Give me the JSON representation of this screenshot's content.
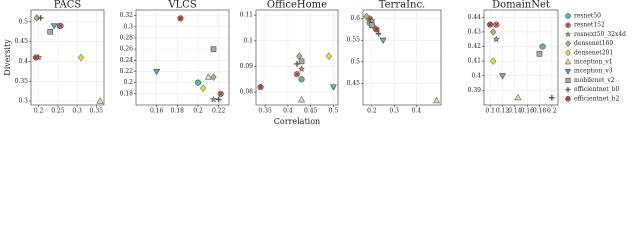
{
  "legend": {
    "names": [
      "resnet50",
      "resnet152",
      "resnext50_32x4d",
      "densenet169",
      "densenet201",
      "inception_v1",
      "inception_v3",
      "mobilenet_v2",
      "efficientnet_b0",
      "efficientnet_b2"
    ],
    "colors": [
      "#5fb3a3",
      "#e8806e",
      "#9ea3c4",
      "#8cc27a",
      "#e6d84a",
      "#e8df9a",
      "#5aa9b5",
      "#a8a8a8",
      "#555555",
      "#e05a4f"
    ],
    "markers": [
      "circle",
      "xcircle",
      "star",
      "diamond",
      "diamond",
      "triangle-up",
      "triangle-down",
      "square",
      "plus",
      "xcircle"
    ]
  },
  "chart_data": [
    {
      "type": "scatter",
      "title": "PACS",
      "ylabel": "Diversity",
      "xlim": [
        0.18,
        0.37
      ],
      "xticks": [
        0.2,
        0.25,
        0.3,
        0.35
      ],
      "ylim": [
        0.29,
        0.53
      ],
      "yticks": [
        0.3,
        0.35,
        0.4,
        0.45,
        0.5
      ],
      "grid": true,
      "x": [
        0.255,
        0.257,
        0.2,
        0.195,
        0.31,
        0.36,
        0.24,
        0.23,
        0.205,
        0.193
      ],
      "values": [
        0.49,
        0.49,
        0.41,
        0.51,
        0.41,
        0.3,
        0.49,
        0.475,
        0.51,
        0.41
      ]
    },
    {
      "type": "scatter",
      "title": "VLCS",
      "xlim": [
        0.14,
        0.23
      ],
      "xticks": [
        0.16,
        0.18,
        0.2,
        0.22
      ],
      "ylim": [
        0.16,
        0.33
      ],
      "yticks": [
        0.18,
        0.2,
        0.22,
        0.24,
        0.26,
        0.28,
        0.3,
        0.32
      ],
      "grid": true,
      "x": [
        0.2,
        0.222,
        0.215,
        0.215,
        0.205,
        0.21,
        0.16,
        0.215,
        0.22,
        0.183
      ],
      "values": [
        0.2,
        0.18,
        0.17,
        0.21,
        0.19,
        0.21,
        0.22,
        0.26,
        0.17,
        0.315
      ]
    },
    {
      "type": "scatter",
      "title": "OfficeHome",
      "xlabel": "Correlation",
      "xlim": [
        0.33,
        0.51
      ],
      "xticks": [
        0.35,
        0.4,
        0.45,
        0.5
      ],
      "ylim": [
        0.075,
        0.112
      ],
      "yticks": [
        0.08,
        0.09,
        0.1,
        0.11
      ],
      "grid": true,
      "x": [
        0.43,
        0.42,
        0.43,
        0.425,
        0.49,
        0.43,
        0.5,
        0.43,
        0.42,
        0.34
      ],
      "values": [
        0.085,
        0.087,
        0.089,
        0.094,
        0.094,
        0.077,
        0.082,
        0.092,
        0.091,
        0.082
      ]
    },
    {
      "type": "scatter",
      "title": "TerraInc.",
      "xlim": [
        0.16,
        0.51
      ],
      "xticks": [
        0.2,
        0.3,
        0.4
      ],
      "ylim": [
        0.4,
        0.62
      ],
      "yticks": [
        0.45,
        0.5,
        0.55,
        0.6
      ],
      "grid": true,
      "x": [
        0.19,
        0.19,
        0.2,
        0.175,
        0.21,
        0.49,
        0.25,
        0.2,
        0.23,
        0.22
      ],
      "values": [
        0.59,
        0.6,
        0.595,
        0.605,
        0.58,
        0.41,
        0.55,
        0.585,
        0.565,
        0.575
      ]
    },
    {
      "type": "scatter",
      "title": "DomainNet",
      "xlim": [
        0.09,
        0.21
      ],
      "xticks": [
        0.1,
        0.12,
        0.14,
        0.16,
        0.18,
        0.2
      ],
      "ylim": [
        0.38,
        0.445
      ],
      "yticks": [
        0.39,
        0.4,
        0.41,
        0.42,
        0.43,
        0.44
      ],
      "grid": true,
      "x": [
        0.185,
        0.11,
        0.11,
        0.105,
        0.105,
        0.145,
        0.12,
        0.18,
        0.2,
        0.1
      ],
      "values": [
        0.42,
        0.435,
        0.425,
        0.43,
        0.41,
        0.385,
        0.4,
        0.415,
        0.385,
        0.435
      ]
    }
  ]
}
